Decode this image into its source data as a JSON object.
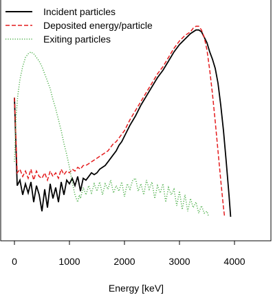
{
  "chart_data": {
    "type": "line",
    "xlabel": "Energy [keV]",
    "ylabel": "",
    "xlim": [
      -140,
      4660
    ],
    "ylim": [
      0,
      1
    ],
    "x_ticks": [
      0,
      1000,
      2000,
      3000,
      4000
    ],
    "x_tick_labels": [
      "0",
      "1000",
      "2000",
      "3000",
      "4000"
    ],
    "grid": false,
    "legend_position": "top-left",
    "series": [
      {
        "name": "Incident particles",
        "color": "#000000",
        "dash": "solid",
        "x": [
          0,
          50,
          100,
          150,
          200,
          250,
          300,
          350,
          400,
          450,
          500,
          550,
          600,
          650,
          700,
          750,
          800,
          850,
          900,
          950,
          1000,
          1050,
          1100,
          1150,
          1200,
          1250,
          1300,
          1350,
          1400,
          1450,
          1500,
          1550,
          1600,
          1650,
          1700,
          1750,
          1800,
          1850,
          1900,
          1950,
          2000,
          2100,
          2200,
          2300,
          2400,
          2500,
          2600,
          2700,
          2800,
          2900,
          3000,
          3100,
          3200,
          3300,
          3350,
          3400,
          3450,
          3500,
          3550,
          3600,
          3650,
          3700,
          3750,
          3800,
          3850,
          3900,
          3930
        ],
        "y": [
          0.65,
          0.17,
          0.2,
          0.12,
          0.18,
          0.13,
          0.19,
          0.08,
          0.17,
          0.12,
          0.03,
          0.15,
          0.05,
          0.18,
          0.1,
          0.16,
          0.08,
          0.19,
          0.12,
          0.2,
          0.18,
          0.21,
          0.17,
          0.22,
          0.14,
          0.21,
          0.2,
          0.22,
          0.24,
          0.23,
          0.24,
          0.26,
          0.27,
          0.28,
          0.3,
          0.32,
          0.34,
          0.36,
          0.39,
          0.41,
          0.44,
          0.5,
          0.55,
          0.61,
          0.66,
          0.71,
          0.76,
          0.8,
          0.85,
          0.9,
          0.94,
          0.97,
          1.0,
          1.02,
          1.02,
          1.01,
          0.98,
          0.95,
          0.9,
          0.86,
          0.81,
          0.73,
          0.61,
          0.47,
          0.3,
          0.12,
          0.0
        ]
      },
      {
        "name": "Deposited energy/particle",
        "color": "#e41a1c",
        "dash": "dashed",
        "x": [
          0,
          50,
          100,
          150,
          200,
          250,
          300,
          350,
          400,
          450,
          500,
          550,
          600,
          650,
          700,
          750,
          800,
          850,
          900,
          950,
          1000,
          1050,
          1100,
          1150,
          1200,
          1250,
          1300,
          1350,
          1400,
          1450,
          1500,
          1550,
          1600,
          1650,
          1700,
          1750,
          1800,
          1850,
          1900,
          1950,
          2000,
          2100,
          2200,
          2300,
          2400,
          2500,
          2600,
          2700,
          2800,
          2900,
          3000,
          3100,
          3200,
          3250,
          3300,
          3350,
          3400,
          3450,
          3500,
          3550,
          3600,
          3650,
          3700,
          3750,
          3800,
          3820
        ],
        "y": [
          0.65,
          0.24,
          0.26,
          0.22,
          0.25,
          0.21,
          0.26,
          0.2,
          0.25,
          0.22,
          0.21,
          0.24,
          0.2,
          0.25,
          0.22,
          0.24,
          0.21,
          0.26,
          0.23,
          0.25,
          0.24,
          0.26,
          0.25,
          0.27,
          0.26,
          0.28,
          0.28,
          0.29,
          0.3,
          0.31,
          0.32,
          0.33,
          0.34,
          0.35,
          0.36,
          0.38,
          0.4,
          0.41,
          0.43,
          0.45,
          0.47,
          0.53,
          0.58,
          0.63,
          0.68,
          0.73,
          0.78,
          0.82,
          0.87,
          0.92,
          0.96,
          0.99,
          1.01,
          1.03,
          1.04,
          1.04,
          1.02,
          0.98,
          0.91,
          0.8,
          0.67,
          0.52,
          0.36,
          0.2,
          0.05,
          0.0
        ]
      },
      {
        "name": "Exiting particles",
        "color": "#4daf4a",
        "dash": "dotted",
        "x": [
          0,
          30,
          60,
          100,
          150,
          200,
          250,
          300,
          350,
          400,
          450,
          500,
          550,
          600,
          650,
          700,
          750,
          800,
          850,
          900,
          950,
          1000,
          1050,
          1100,
          1150,
          1180,
          1200,
          1250,
          1300,
          1350,
          1400,
          1450,
          1500,
          1550,
          1600,
          1650,
          1700,
          1750,
          1800,
          1850,
          1900,
          1950,
          2000,
          2050,
          2100,
          2150,
          2200,
          2250,
          2300,
          2350,
          2400,
          2450,
          2500,
          2550,
          2600,
          2650,
          2700,
          2750,
          2800,
          2850,
          2900,
          2950,
          3000,
          3050,
          3100,
          3150,
          3200,
          3250,
          3300,
          3350,
          3400,
          3450,
          3500,
          3530
        ],
        "y": [
          0.3,
          0.55,
          0.66,
          0.75,
          0.82,
          0.87,
          0.89,
          0.9,
          0.89,
          0.87,
          0.85,
          0.82,
          0.78,
          0.74,
          0.7,
          0.64,
          0.59,
          0.53,
          0.47,
          0.4,
          0.34,
          0.27,
          0.19,
          0.12,
          0.08,
          0.12,
          0.1,
          0.16,
          0.12,
          0.17,
          0.13,
          0.18,
          0.14,
          0.19,
          0.12,
          0.18,
          0.15,
          0.2,
          0.13,
          0.17,
          0.14,
          0.19,
          0.11,
          0.18,
          0.15,
          0.2,
          0.21,
          0.14,
          0.18,
          0.12,
          0.2,
          0.15,
          0.19,
          0.1,
          0.17,
          0.13,
          0.18,
          0.08,
          0.16,
          0.12,
          0.15,
          0.06,
          0.14,
          0.04,
          0.12,
          0.03,
          0.1,
          0.05,
          0.08,
          0.02,
          0.06,
          0.02,
          0.03,
          0.0
        ]
      }
    ]
  }
}
